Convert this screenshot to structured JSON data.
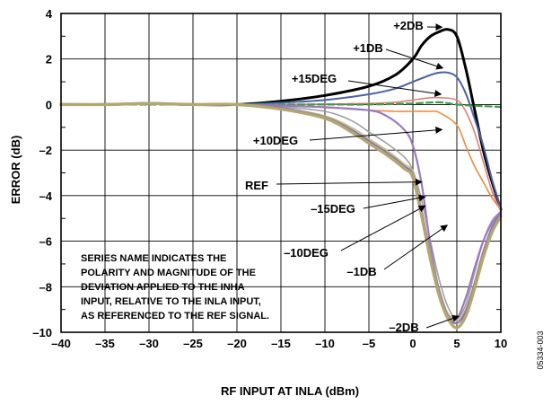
{
  "figure_id": "05334-003",
  "chart_data": {
    "type": "line",
    "title": "",
    "xlabel": "RF INPUT AT INLA (dBm)",
    "ylabel": "ERROR (dB)",
    "xlim": [
      -40,
      10
    ],
    "ylim": [
      -10,
      4
    ],
    "x_ticks": [
      -40,
      -35,
      -30,
      -25,
      -20,
      -15,
      -10,
      -5,
      0,
      5,
      10
    ],
    "x_tick_labels": [
      "–40",
      "–35",
      "–30",
      "–25",
      "–20",
      "–15",
      "–10",
      "–5",
      "0",
      "5",
      "10"
    ],
    "y_ticks": [
      -10,
      -8,
      -6,
      -4,
      -2,
      0,
      2,
      4
    ],
    "y_tick_labels": [
      "–10",
      "–8",
      "–6",
      "–4",
      "–2",
      "0",
      "2",
      "4"
    ],
    "grid": true,
    "note": [
      "SERIES NAME INDICATES THE",
      "POLARITY AND MAGNITUDE OF THE",
      "DEVIATION APPLIED TO THE INHA",
      "INPUT, RELATIVE TO THE INLA INPUT,",
      "AS REFERENCED TO THE REF SIGNAL."
    ],
    "series": [
      {
        "name": "REF",
        "color": "#a0a0a0",
        "stroke": 1.6,
        "points": [
          [
            -40,
            0
          ],
          [
            -35,
            0
          ],
          [
            -30,
            0.05
          ],
          [
            -25,
            0
          ],
          [
            -20,
            0
          ],
          [
            -15,
            -0.1
          ],
          [
            -10,
            -0.3
          ],
          [
            -7,
            -0.7
          ],
          [
            -5,
            -1.2
          ],
          [
            -3,
            -1.7
          ],
          [
            -1,
            -2.3
          ],
          [
            0,
            -2.9
          ],
          [
            1,
            -4.2
          ],
          [
            2,
            -6
          ],
          [
            3,
            -7.7
          ],
          [
            4,
            -8.9
          ],
          [
            5,
            -9.4
          ],
          [
            6,
            -8.8
          ],
          [
            7,
            -7.4
          ],
          [
            8,
            -6
          ],
          [
            9,
            -5.1
          ],
          [
            10,
            -4.7
          ]
        ]
      },
      {
        "name": "+2DB",
        "color": "#000000",
        "stroke": 3,
        "points": [
          [
            -40,
            0
          ],
          [
            -35,
            0
          ],
          [
            -30,
            0.05
          ],
          [
            -25,
            0
          ],
          [
            -20,
            0
          ],
          [
            -15,
            0.15
          ],
          [
            -10,
            0.4
          ],
          [
            -5,
            0.8
          ],
          [
            -2,
            1.3
          ],
          [
            0,
            2
          ],
          [
            1,
            2.6
          ],
          [
            2,
            3.0
          ],
          [
            3,
            3.2
          ],
          [
            4,
            3.3
          ],
          [
            5,
            3.0
          ],
          [
            6,
            1.6
          ],
          [
            7,
            -0.2
          ],
          [
            8,
            -2
          ],
          [
            9,
            -3.4
          ],
          [
            10,
            -4.6
          ]
        ]
      },
      {
        "name": "+1DB",
        "color": "#4a62a6",
        "stroke": 2,
        "points": [
          [
            -40,
            0
          ],
          [
            -35,
            0
          ],
          [
            -30,
            0.05
          ],
          [
            -25,
            0
          ],
          [
            -20,
            0
          ],
          [
            -15,
            0.08
          ],
          [
            -10,
            0.2
          ],
          [
            -5,
            0.45
          ],
          [
            -2,
            0.7
          ],
          [
            0,
            1.0
          ],
          [
            2,
            1.3
          ],
          [
            3,
            1.4
          ],
          [
            4,
            1.4
          ],
          [
            5,
            1.2
          ],
          [
            6,
            0.5
          ],
          [
            7,
            -0.6
          ],
          [
            8,
            -1.8
          ],
          [
            9,
            -3.3
          ],
          [
            10,
            -4.6
          ]
        ]
      },
      {
        "name": "+15DEG",
        "color": "#e07e77",
        "stroke": 1.6,
        "points": [
          [
            -40,
            0
          ],
          [
            -35,
            0
          ],
          [
            -30,
            0.05
          ],
          [
            -25,
            0
          ],
          [
            -20,
            0
          ],
          [
            -15,
            0
          ],
          [
            -10,
            0.02
          ],
          [
            -5,
            0.05
          ],
          [
            -2,
            0.1
          ],
          [
            0,
            0.2
          ],
          [
            2,
            0.3
          ],
          [
            3,
            0.3
          ],
          [
            5,
            0.2
          ],
          [
            6,
            -0.3
          ],
          [
            7,
            -1.2
          ],
          [
            8,
            -2.5
          ],
          [
            9,
            -3.8
          ],
          [
            10,
            -4.7
          ]
        ]
      },
      {
        "name": "GREEN",
        "color": "#3f9d4a",
        "stroke": 2.2,
        "dash": "7,4",
        "points": [
          [
            -40,
            0
          ],
          [
            -30,
            0
          ],
          [
            -20,
            0
          ],
          [
            -10,
            0
          ],
          [
            -5,
            0
          ],
          [
            0,
            0.05
          ],
          [
            3,
            0.1
          ],
          [
            5,
            0
          ],
          [
            7,
            -0.05
          ],
          [
            10,
            -0.1
          ]
        ]
      },
      {
        "name": "+10DEG",
        "color": "#f08a3e",
        "stroke": 1.6,
        "points": [
          [
            -40,
            0
          ],
          [
            -35,
            0
          ],
          [
            -30,
            0.05
          ],
          [
            -25,
            0
          ],
          [
            -20,
            0
          ],
          [
            -15,
            -0.05
          ],
          [
            -10,
            -0.1
          ],
          [
            -7,
            -0.2
          ],
          [
            -5,
            -0.25
          ],
          [
            -2,
            -0.3
          ],
          [
            0,
            -0.3
          ],
          [
            2,
            -0.3
          ],
          [
            3,
            -0.35
          ],
          [
            5,
            -0.9
          ],
          [
            6,
            -1.8
          ],
          [
            7,
            -2.7
          ],
          [
            8,
            -3.4
          ],
          [
            9,
            -4.1
          ],
          [
            10,
            -4.6
          ]
        ]
      },
      {
        "name": "–15DEG",
        "color": "#9b78c2",
        "stroke": 2.2,
        "points": [
          [
            -40,
            0
          ],
          [
            -35,
            0
          ],
          [
            -30,
            0.05
          ],
          [
            -25,
            0
          ],
          [
            -20,
            0
          ],
          [
            -15,
            -0.05
          ],
          [
            -10,
            -0.12
          ],
          [
            -5,
            -0.25
          ],
          [
            -3,
            -0.5
          ],
          [
            -1,
            -1.1
          ],
          [
            0,
            -1.8
          ],
          [
            1,
            -3.5
          ],
          [
            2,
            -6.2
          ],
          [
            3,
            -8.2
          ],
          [
            4,
            -9.2
          ],
          [
            5,
            -9.4
          ],
          [
            6,
            -8.5
          ],
          [
            7,
            -7.2
          ],
          [
            8,
            -6.0
          ],
          [
            9,
            -5.2
          ],
          [
            10,
            -4.7
          ]
        ]
      },
      {
        "name": "–10DEG",
        "color": "#c3bb7e",
        "stroke": 1.6,
        "points": [
          [
            -40,
            0
          ],
          [
            -35,
            0
          ],
          [
            -30,
            0.05
          ],
          [
            -25,
            0
          ],
          [
            -20,
            0
          ],
          [
            -15,
            -0.15
          ],
          [
            -10,
            -0.5
          ],
          [
            -7,
            -1.0
          ],
          [
            -5,
            -1.5
          ],
          [
            -3,
            -2.0
          ],
          [
            -1,
            -2.6
          ],
          [
            0,
            -3.0
          ],
          [
            1,
            -4.6
          ],
          [
            2,
            -6.5
          ],
          [
            3,
            -8.1
          ],
          [
            4,
            -9.2
          ],
          [
            5,
            -9.5
          ],
          [
            6,
            -9.0
          ],
          [
            7,
            -7.8
          ],
          [
            8,
            -6.4
          ],
          [
            9,
            -5.4
          ],
          [
            10,
            -4.8
          ]
        ]
      },
      {
        "name": "–1DB",
        "color": "#8472b5",
        "stroke": 2.2,
        "points": [
          [
            -40,
            0
          ],
          [
            -35,
            0
          ],
          [
            -30,
            0.05
          ],
          [
            -25,
            0
          ],
          [
            -20,
            0
          ],
          [
            -15,
            -0.15
          ],
          [
            -10,
            -0.55
          ],
          [
            -7,
            -1.1
          ],
          [
            -5,
            -1.6
          ],
          [
            -3,
            -2.1
          ],
          [
            -1,
            -2.7
          ],
          [
            0,
            -3.1
          ],
          [
            1,
            -4.7
          ],
          [
            2,
            -6.6
          ],
          [
            3,
            -8.2
          ],
          [
            4,
            -9.3
          ],
          [
            5,
            -9.6
          ],
          [
            6,
            -9.1
          ],
          [
            7,
            -7.9
          ],
          [
            8,
            -6.5
          ],
          [
            9,
            -5.4
          ],
          [
            10,
            -4.8
          ]
        ]
      },
      {
        "name": "–2DB",
        "color": "#b3a66f",
        "stroke": 3.4,
        "points": [
          [
            -40,
            0
          ],
          [
            -35,
            0
          ],
          [
            -30,
            0.05
          ],
          [
            -25,
            0
          ],
          [
            -20,
            0
          ],
          [
            -15,
            -0.2
          ],
          [
            -10,
            -0.6
          ],
          [
            -7,
            -1.2
          ],
          [
            -5,
            -1.7
          ],
          [
            -3,
            -2.2
          ],
          [
            -1,
            -2.8
          ],
          [
            0,
            -3.2
          ],
          [
            1,
            -4.9
          ],
          [
            2,
            -6.8
          ],
          [
            3,
            -8.4
          ],
          [
            4,
            -9.4
          ],
          [
            5,
            -9.8
          ],
          [
            6,
            -9.3
          ],
          [
            7,
            -8.1
          ],
          [
            8,
            -6.7
          ],
          [
            9,
            -5.6
          ],
          [
            10,
            -4.9
          ]
        ]
      }
    ],
    "annotations": [
      {
        "label": "+2DB",
        "tip": [
          3.3,
          3.4
        ]
      },
      {
        "label": "+1DB",
        "tip": [
          3.4,
          1.6
        ]
      },
      {
        "label": "+15DEG",
        "tip": [
          3.2,
          0.45
        ]
      },
      {
        "label": "+10DEG",
        "tip": [
          3.3,
          -1.1
        ]
      },
      {
        "label": "REF",
        "tip": [
          1.0,
          -3.4
        ]
      },
      {
        "label": "–15DEG",
        "tip": [
          1.4,
          -4.05
        ]
      },
      {
        "label": "–10DEG",
        "tip": [
          1.4,
          -4.45
        ]
      },
      {
        "label": "–1DB",
        "tip": [
          3.9,
          -5.3
        ]
      },
      {
        "label": "–2DB",
        "tip": [
          5.2,
          -9.3
        ]
      }
    ]
  }
}
